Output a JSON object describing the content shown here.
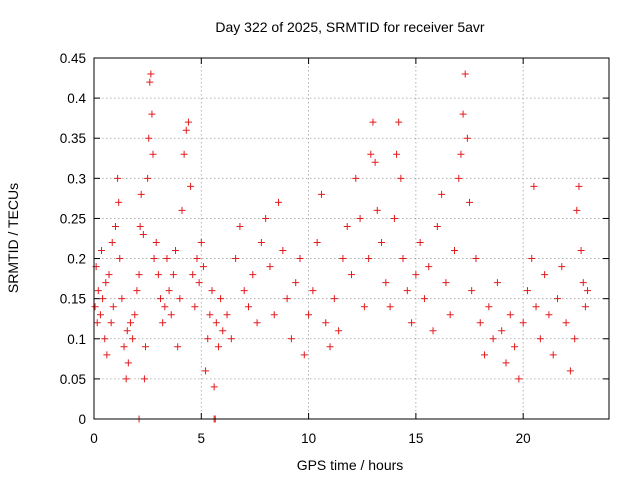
{
  "chart_data": {
    "type": "scatter",
    "title": "Day 322 of 2025, SRMTID for receiver 5avr",
    "xlabel": "GPS time / hours",
    "ylabel": "SRMTID / TECUs",
    "xlim": [
      0,
      24
    ],
    "ylim": [
      0,
      0.45
    ],
    "xticks": [
      0,
      5,
      10,
      15,
      20
    ],
    "xtick_labels": [
      "0",
      "5",
      "10",
      "15",
      "20"
    ],
    "yticks": [
      0,
      0.05,
      0.1,
      0.15,
      0.2,
      0.25,
      0.3,
      0.35,
      0.4,
      0.45
    ],
    "ytick_labels": [
      "0",
      "0.05",
      "0.1",
      "0.15",
      "0.2",
      "0.25",
      "0.3",
      "0.35",
      "0.4",
      "0.45"
    ],
    "grid": true,
    "marker": "plus",
    "marker_color": "#e41a1c",
    "series": [
      {
        "name": "SRMTID",
        "points": [
          [
            0.05,
            0.14
          ],
          [
            0.1,
            0.19
          ],
          [
            0.15,
            0.12
          ],
          [
            0.2,
            0.16
          ],
          [
            0.3,
            0.13
          ],
          [
            0.35,
            0.21
          ],
          [
            0.4,
            0.15
          ],
          [
            0.5,
            0.1
          ],
          [
            0.55,
            0.17
          ],
          [
            0.6,
            0.08
          ],
          [
            0.7,
            0.18
          ],
          [
            0.8,
            0.12
          ],
          [
            0.85,
            0.22
          ],
          [
            0.9,
            0.14
          ],
          [
            1.0,
            0.24
          ],
          [
            1.1,
            0.3
          ],
          [
            1.15,
            0.27
          ],
          [
            1.2,
            0.2
          ],
          [
            1.3,
            0.15
          ],
          [
            1.4,
            0.09
          ],
          [
            1.5,
            0.05
          ],
          [
            1.55,
            0.11
          ],
          [
            1.6,
            0.07
          ],
          [
            1.7,
            0.12
          ],
          [
            1.8,
            0.1
          ],
          [
            1.9,
            0.13
          ],
          [
            2.0,
            0.16
          ],
          [
            2.1,
            0.18
          ],
          [
            2.15,
            0.24
          ],
          [
            2.2,
            0.28
          ],
          [
            2.3,
            0.23
          ],
          [
            2.35,
            0.05
          ],
          [
            2.4,
            0.09
          ],
          [
            2.5,
            0.3
          ],
          [
            2.55,
            0.35
          ],
          [
            2.6,
            0.42
          ],
          [
            2.65,
            0.43
          ],
          [
            2.7,
            0.38
          ],
          [
            2.75,
            0.33
          ],
          [
            2.8,
            0.2
          ],
          [
            2.9,
            0.22
          ],
          [
            3.0,
            0.18
          ],
          [
            3.1,
            0.15
          ],
          [
            3.2,
            0.12
          ],
          [
            3.3,
            0.14
          ],
          [
            3.4,
            0.2
          ],
          [
            3.5,
            0.16
          ],
          [
            3.6,
            0.13
          ],
          [
            3.7,
            0.18
          ],
          [
            3.8,
            0.21
          ],
          [
            3.9,
            0.09
          ],
          [
            4.0,
            0.15
          ],
          [
            4.1,
            0.26
          ],
          [
            4.2,
            0.33
          ],
          [
            4.3,
            0.36
          ],
          [
            4.4,
            0.37
          ],
          [
            4.5,
            0.29
          ],
          [
            4.6,
            0.18
          ],
          [
            4.7,
            0.14
          ],
          [
            4.8,
            0.2
          ],
          [
            4.9,
            0.17
          ],
          [
            5.0,
            0.22
          ],
          [
            5.1,
            0.19
          ],
          [
            5.2,
            0.06
          ],
          [
            5.3,
            0.1
          ],
          [
            5.4,
            0.13
          ],
          [
            5.5,
            0.16
          ],
          [
            5.6,
            0.04
          ],
          [
            5.7,
            0.12
          ],
          [
            5.8,
            0.09
          ],
          [
            5.9,
            0.15
          ],
          [
            6.0,
            0.11
          ],
          [
            6.2,
            0.13
          ],
          [
            6.4,
            0.1
          ],
          [
            6.6,
            0.2
          ],
          [
            6.8,
            0.24
          ],
          [
            7.0,
            0.16
          ],
          [
            7.2,
            0.14
          ],
          [
            7.4,
            0.18
          ],
          [
            7.6,
            0.12
          ],
          [
            7.8,
            0.22
          ],
          [
            8.0,
            0.25
          ],
          [
            8.2,
            0.19
          ],
          [
            8.4,
            0.13
          ],
          [
            8.6,
            0.27
          ],
          [
            8.8,
            0.21
          ],
          [
            9.0,
            0.15
          ],
          [
            9.2,
            0.1
          ],
          [
            9.4,
            0.17
          ],
          [
            9.6,
            0.2
          ],
          [
            9.8,
            0.08
          ],
          [
            10.0,
            0.13
          ],
          [
            10.2,
            0.16
          ],
          [
            10.4,
            0.22
          ],
          [
            10.6,
            0.28
          ],
          [
            10.8,
            0.12
          ],
          [
            11.0,
            0.09
          ],
          [
            11.2,
            0.15
          ],
          [
            11.4,
            0.11
          ],
          [
            11.6,
            0.2
          ],
          [
            11.8,
            0.24
          ],
          [
            12.0,
            0.18
          ],
          [
            12.2,
            0.3
          ],
          [
            12.4,
            0.25
          ],
          [
            12.6,
            0.14
          ],
          [
            12.8,
            0.2
          ],
          [
            12.9,
            0.33
          ],
          [
            13.0,
            0.37
          ],
          [
            13.1,
            0.32
          ],
          [
            13.2,
            0.26
          ],
          [
            13.4,
            0.22
          ],
          [
            13.6,
            0.17
          ],
          [
            13.8,
            0.14
          ],
          [
            14.0,
            0.25
          ],
          [
            14.1,
            0.33
          ],
          [
            14.2,
            0.37
          ],
          [
            14.3,
            0.3
          ],
          [
            14.4,
            0.2
          ],
          [
            14.6,
            0.16
          ],
          [
            14.8,
            0.12
          ],
          [
            15.0,
            0.18
          ],
          [
            15.2,
            0.22
          ],
          [
            15.4,
            0.15
          ],
          [
            15.6,
            0.19
          ],
          [
            15.8,
            0.11
          ],
          [
            16.0,
            0.24
          ],
          [
            16.2,
            0.28
          ],
          [
            16.4,
            0.17
          ],
          [
            16.6,
            0.13
          ],
          [
            16.8,
            0.21
          ],
          [
            17.0,
            0.3
          ],
          [
            17.1,
            0.33
          ],
          [
            17.2,
            0.38
          ],
          [
            17.3,
            0.43
          ],
          [
            17.4,
            0.35
          ],
          [
            17.5,
            0.27
          ],
          [
            17.6,
            0.16
          ],
          [
            17.8,
            0.2
          ],
          [
            18.0,
            0.12
          ],
          [
            18.2,
            0.08
          ],
          [
            18.4,
            0.14
          ],
          [
            18.6,
            0.1
          ],
          [
            18.8,
            0.17
          ],
          [
            19.0,
            0.11
          ],
          [
            19.2,
            0.07
          ],
          [
            19.4,
            0.13
          ],
          [
            19.6,
            0.09
          ],
          [
            19.8,
            0.05
          ],
          [
            20.0,
            0.12
          ],
          [
            20.2,
            0.16
          ],
          [
            20.4,
            0.2
          ],
          [
            20.5,
            0.29
          ],
          [
            20.6,
            0.14
          ],
          [
            20.8,
            0.1
          ],
          [
            21.0,
            0.18
          ],
          [
            21.2,
            0.13
          ],
          [
            21.4,
            0.08
          ],
          [
            21.6,
            0.15
          ],
          [
            21.8,
            0.19
          ],
          [
            22.0,
            0.12
          ],
          [
            22.2,
            0.06
          ],
          [
            22.4,
            0.1
          ],
          [
            22.5,
            0.26
          ],
          [
            22.6,
            0.29
          ],
          [
            22.7,
            0.21
          ],
          [
            22.8,
            0.17
          ],
          [
            22.9,
            0.14
          ],
          [
            23.0,
            0.16
          ],
          [
            2.1,
            0.0
          ],
          [
            5.6,
            0.0
          ],
          [
            5.65,
            0.0
          ]
        ]
      }
    ]
  }
}
